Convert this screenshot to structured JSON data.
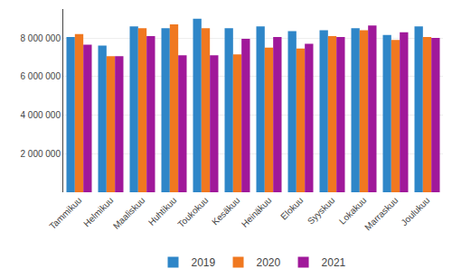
{
  "chart_data": {
    "type": "bar",
    "categories": [
      "Tammikuu",
      "Helmikuu",
      "Maaliskuu",
      "Huhtikuu",
      "Toukokuu",
      "Kesäkuu",
      "Heinäkuu",
      "Elokuu",
      "Syyskuu",
      "Lokakuu",
      "Marraskuu",
      "Joulukuu"
    ],
    "series": [
      {
        "name": "2019",
        "color": "#2E86C8",
        "values": [
          8050000,
          7600000,
          8600000,
          8500000,
          9000000,
          8500000,
          8600000,
          8350000,
          8400000,
          8500000,
          8150000,
          8600000
        ]
      },
      {
        "name": "2020",
        "color": "#F07820",
        "values": [
          8200000,
          7050000,
          8500000,
          8700000,
          8500000,
          7150000,
          7500000,
          7450000,
          8100000,
          8400000,
          7900000,
          8050000
        ]
      },
      {
        "name": "2021",
        "color": "#A0189A",
        "values": [
          7650000,
          7050000,
          8100000,
          7100000,
          7100000,
          7950000,
          8050000,
          7700000,
          8050000,
          8650000,
          8300000,
          8000000
        ]
      }
    ],
    "ylim": [
      0,
      9500000
    ],
    "yticks": [
      {
        "value": 2000000,
        "label": "2 000 000"
      },
      {
        "value": 4000000,
        "label": "4 000 000"
      },
      {
        "value": 6000000,
        "label": "6 000 000"
      },
      {
        "value": 8000000,
        "label": "8 000 000"
      }
    ],
    "grid": true,
    "legend": "bottom"
  }
}
